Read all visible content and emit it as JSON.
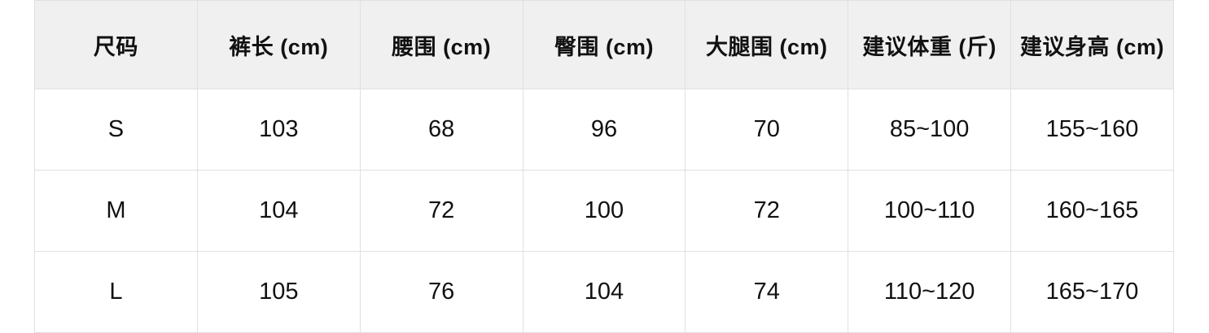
{
  "table": {
    "title_semantic": "size-chart",
    "columns": [
      {
        "label": "尺码"
      },
      {
        "label": "裤长 (cm)"
      },
      {
        "label": "腰围 (cm)"
      },
      {
        "label": "臀围 (cm)"
      },
      {
        "label": "大腿围 (cm)"
      },
      {
        "label": "建议体重 (斤)"
      },
      {
        "label": "建议身高 (cm)"
      }
    ],
    "rows": [
      [
        "S",
        "103",
        "68",
        "96",
        "70",
        "85~100",
        "155~160"
      ],
      [
        "M",
        "104",
        "72",
        "100",
        "72",
        "100~110",
        "160~165"
      ],
      [
        "L",
        "105",
        "76",
        "104",
        "74",
        "110~120",
        "165~170"
      ]
    ]
  },
  "colors": {
    "header_bg": "#f0f0f0",
    "grid_border": "#e0e0e0",
    "text": "#111111",
    "page_bg": "#ffffff"
  }
}
